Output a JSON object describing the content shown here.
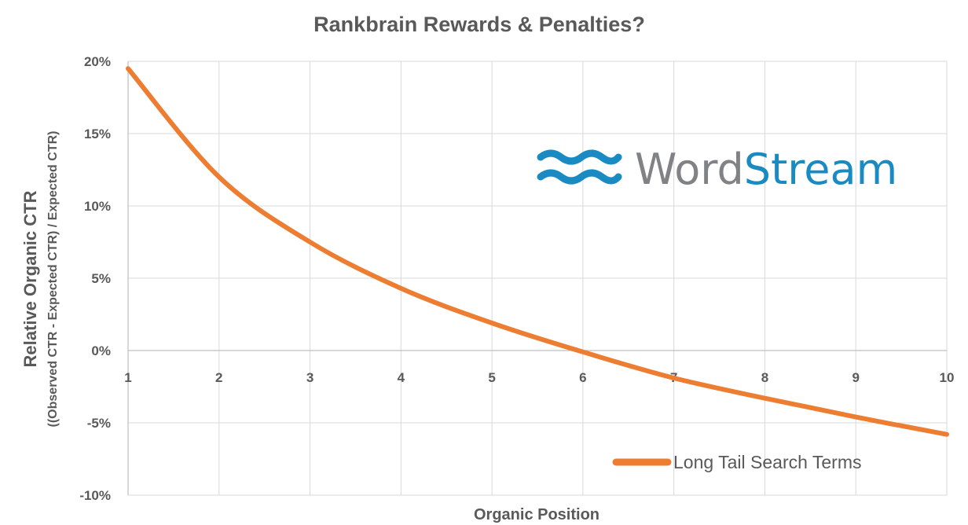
{
  "chart_data": {
    "type": "line",
    "title": "Rankbrain Rewards & Penalties?",
    "xlabel": "Organic Position",
    "ylabel": "Relative Organic CTR",
    "ylabel_sub": "((Observed CTR - Expected CTR) / Expected CTR)",
    "x": [
      1,
      2,
      3,
      4,
      5,
      6,
      7,
      8,
      9,
      10
    ],
    "x_tick_labels": [
      "1",
      "2",
      "3",
      "4",
      "5",
      "6",
      "7",
      "8",
      "9",
      "10"
    ],
    "xlim": [
      1,
      10
    ],
    "ylim": [
      -10,
      20
    ],
    "y_ticks": [
      20,
      15,
      10,
      5,
      0,
      -5,
      -10
    ],
    "y_tick_labels": [
      "20%",
      "15%",
      "10%",
      "5%",
      "0%",
      "-5%",
      "-10%"
    ],
    "grid": true,
    "legend_position": "bottom-right",
    "series": [
      {
        "name": "Long Tail Search Terms",
        "color": "#ed7d31",
        "values": [
          19.5,
          12.0,
          7.5,
          4.3,
          1.9,
          -0.1,
          -1.9,
          -3.3,
          -4.6,
          -5.8
        ]
      }
    ]
  },
  "logo": {
    "word_part1": "Word",
    "word_part2": "Stream",
    "icon": "wave-icon",
    "color_gray": "#808285",
    "color_blue": "#1a8bc2"
  }
}
